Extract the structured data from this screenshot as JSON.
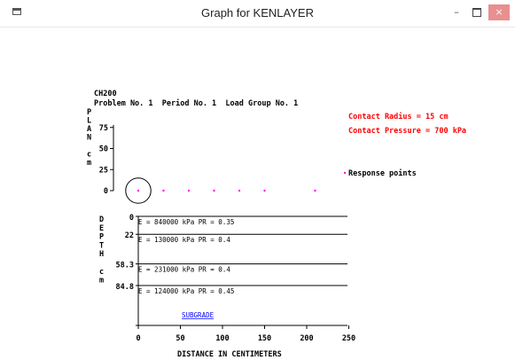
{
  "window": {
    "title": "Graph for KENLAYER",
    "min_label": "–",
    "close_label": "×"
  },
  "header": {
    "line1": "CH200",
    "line2": "Problem No. 1  Period No. 1  Load Group No. 1",
    "contact_radius": "Contact Radius = 15 cm",
    "contact_pressure": "Contact Pressure = 700 kPa",
    "response_points": "Response points"
  },
  "plan_axis": {
    "letters": [
      "P",
      "L",
      "A",
      "N",
      "",
      "c",
      "m"
    ],
    "ticks": [
      {
        "label": "75",
        "value": 75
      },
      {
        "label": "50",
        "value": 50
      },
      {
        "label": "25",
        "value": 25
      },
      {
        "label": "0",
        "value": 0
      }
    ]
  },
  "depth_axis": {
    "letters": [
      "D",
      "E",
      "P",
      "T",
      "H",
      "",
      "c",
      "m"
    ],
    "ticks": [
      {
        "label": "0",
        "value": 0
      },
      {
        "label": "22",
        "value": 22
      },
      {
        "label": "58.3",
        "value": 58.3
      },
      {
        "label": "84.8",
        "value": 84.8
      }
    ]
  },
  "layers": [
    {
      "label": "E = 840000 kPa   PR = 0.35",
      "top": 0
    },
    {
      "label": "E = 130000 kPa   PR = 0.4",
      "top": 22
    },
    {
      "label": "E = 231000 kPa   PR = 0.4",
      "top": 58.3
    },
    {
      "label": "E = 124000 kPa   PR = 0.45",
      "top": 84.8
    }
  ],
  "subgrade_label": "SUBGRADE",
  "x_axis": {
    "label": "DISTANCE IN CENTIMETERS",
    "ticks": [
      {
        "label": "0",
        "value": 0
      },
      {
        "label": "50",
        "value": 50
      },
      {
        "label": "100",
        "value": 100
      },
      {
        "label": "150",
        "value": 150
      },
      {
        "label": "200",
        "value": 200
      },
      {
        "label": "250",
        "value": 250
      }
    ]
  },
  "load_circle": {
    "center_x": 0,
    "radius": 15
  },
  "response_points_x": [
    0,
    30,
    60,
    90,
    120,
    150,
    210
  ],
  "colors": {
    "annotation": "#ff0000",
    "points": "#ff00ff",
    "subgrade": "#0000ff",
    "lines": "#000000"
  }
}
